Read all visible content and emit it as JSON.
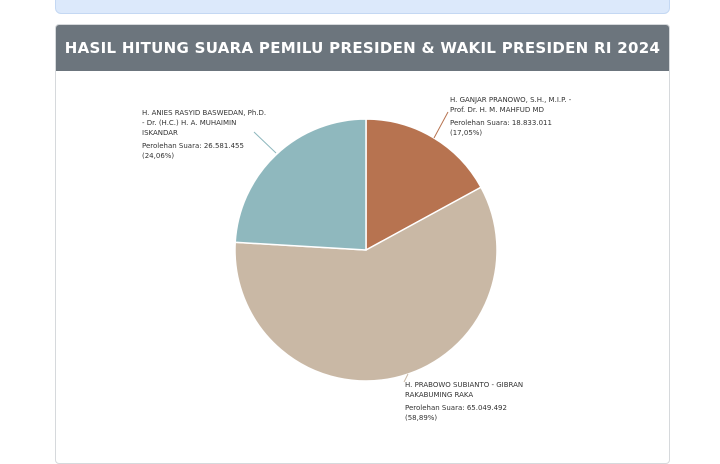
{
  "header": {
    "title": "HASIL HITUNG SUARA PEMILU PRESIDEN & WAKIL PRESIDEN RI 2024"
  },
  "colors": {
    "header_bg": "#6c757d",
    "slice_1": "#8fb8be",
    "slice_2": "#b77350",
    "slice_3": "#c9b8a5"
  },
  "chart_data": {
    "type": "pie",
    "title": "HASIL HITUNG SUARA PEMILU PRESIDEN & WAKIL PRESIDEN RI 2024",
    "slices": [
      {
        "name_lines": [
          "H. ANIES RASYID BASWEDAN, Ph.D.",
          "- Dr. (H.C.) H. A. MUHAIMIN",
          "ISKANDAR"
        ],
        "votes_label": "Perolehan Suara: 26.581.455",
        "percent_label": "(24,06%)",
        "value": 26581455,
        "percent": 24.06,
        "color": "#8fb8be"
      },
      {
        "name_lines": [
          "H. GANJAR PRANOWO, S.H., M.I.P. -",
          "Prof. Dr. H. M. MAHFUD MD"
        ],
        "votes_label": "Perolehan Suara: 18.833.011",
        "percent_label": "(17,05%)",
        "value": 18833011,
        "percent": 17.05,
        "color": "#b77350"
      },
      {
        "name_lines": [
          "H. PRABOWO SUBIANTO - GIBRAN",
          "RAKABUMING RAKA"
        ],
        "votes_label": "Perolehan Suara: 65.049.492",
        "percent_label": "(58,89%)",
        "value": 65049492,
        "percent": 58.89,
        "color": "#c9b8a5"
      }
    ]
  }
}
